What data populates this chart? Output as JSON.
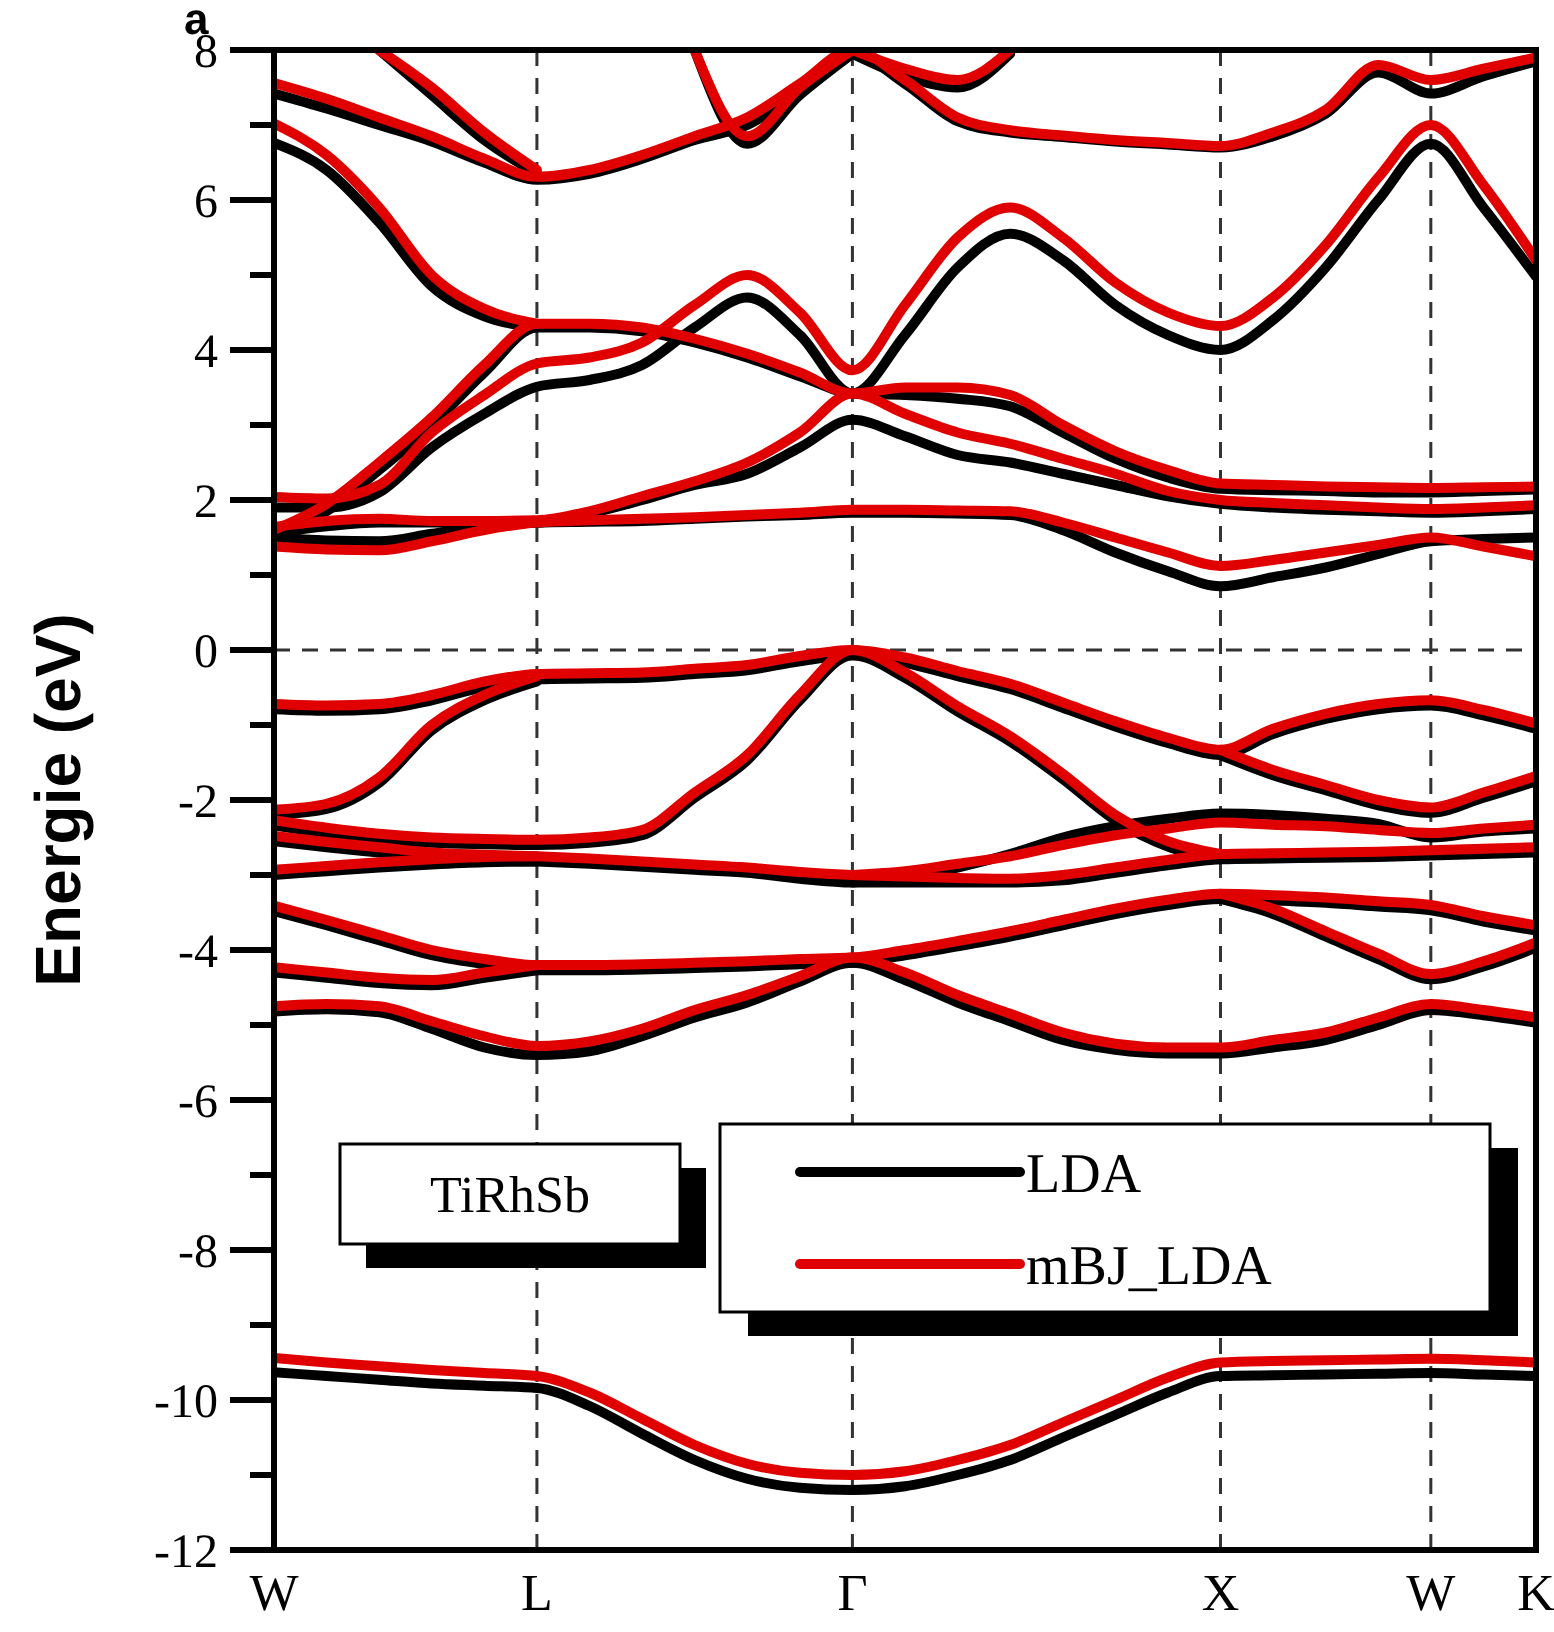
{
  "chart_data": {
    "type": "line",
    "ylabel": "Energie (eV)",
    "annotations": [
      "a",
      "TiRhSb"
    ],
    "categories": [
      "W",
      null,
      null,
      null,
      null,
      "L",
      null,
      null,
      null,
      null,
      null,
      "Γ",
      null,
      null,
      null,
      null,
      null,
      null,
      "X",
      null,
      null,
      null,
      "W",
      null,
      "K"
    ],
    "ylim": [
      -12,
      8
    ],
    "yticks": [
      -12,
      {
        "value": -11,
        "label": null
      },
      -10,
      {
        "value": -9,
        "label": null
      },
      -8,
      {
        "value": -7,
        "label": null
      },
      -6,
      {
        "value": -5,
        "label": null
      },
      -4,
      {
        "value": -3,
        "label": null
      },
      -2,
      {
        "value": -1,
        "label": null
      },
      0,
      {
        "value": 1,
        "label": null
      },
      2,
      {
        "value": 3,
        "label": null
      },
      4,
      {
        "value": 5,
        "label": null
      },
      6,
      {
        "value": 7,
        "label": null
      },
      8
    ],
    "grid": "x",
    "legend": "bottom",
    "line_style": "solid",
    "marker": "none",
    "ref_lines": [
      {
        "axis": "y",
        "value": 0,
        "line_style": "dashed",
        "color": "#333333"
      }
    ],
    "series": [
      {
        "name": "LDA",
        "color": "#000000",
        "values": [
          -9.63,
          -9.68,
          -9.73,
          -9.78,
          -9.81,
          -9.84,
          -10.08,
          -10.45,
          -10.8,
          -11.05,
          -11.17,
          -11.2,
          -11.15,
          -11.0,
          -10.8,
          -10.5,
          -10.2,
          -9.9,
          -9.68,
          -9.67,
          -9.66,
          -9.65,
          -9.64,
          -9.66,
          -9.68
        ]
      },
      {
        "color": "#000000",
        "values": [
          -0.79,
          -0.81,
          -0.79,
          -0.67,
          -0.49,
          -0.39,
          -0.38,
          -0.37,
          -0.32,
          -0.27,
          -0.15,
          -0.07,
          -0.17,
          -0.35,
          -0.52,
          -0.77,
          -1.02,
          -1.24,
          -1.4,
          -1.12,
          -0.92,
          -0.79,
          -0.74,
          -0.87,
          -1.05
        ]
      },
      {
        "color": "#000000",
        "values": [
          -2.2,
          -2.12,
          -1.77,
          -1.07,
          -0.67,
          -0.42,
          null,
          null,
          null,
          null,
          null,
          null,
          null,
          null,
          null,
          null,
          null,
          null,
          null,
          null,
          null,
          null,
          null,
          null,
          null
        ]
      },
      {
        "color": "#000000",
        "values": [
          null,
          null,
          null,
          null,
          null,
          null,
          null,
          null,
          null,
          null,
          null,
          null,
          null,
          null,
          null,
          null,
          null,
          null,
          -1.4,
          -1.67,
          -1.87,
          -2.07,
          -2.17,
          -1.97,
          -1.75
        ]
      },
      {
        "color": "#000000",
        "values": [
          -2.34,
          -2.44,
          -2.52,
          -2.57,
          -2.59,
          -2.6,
          -2.57,
          -2.47,
          -1.97,
          -1.47,
          -0.67,
          -0.07,
          -0.37,
          -0.82,
          -1.22,
          -1.72,
          -2.27,
          -2.62,
          -2.79,
          null,
          null,
          null,
          null,
          null,
          null
        ]
      },
      {
        "color": "#000000",
        "values": [
          -2.55,
          -2.63,
          -2.7,
          -2.77,
          -2.8,
          -2.82,
          -2.85,
          -2.89,
          -2.93,
          -2.97,
          -3.05,
          -3.1,
          -3.1,
          -3.1,
          -3.1,
          -3.07,
          -2.97,
          -2.87,
          -2.79,
          -2.78,
          -2.77,
          -2.76,
          -2.74,
          -2.72,
          -2.7
        ]
      },
      {
        "color": "#000000",
        "values": [
          -3.0,
          -2.95,
          -2.9,
          -2.86,
          -2.83,
          -2.82,
          null,
          null,
          null,
          null,
          null,
          null,
          null,
          null,
          null,
          null,
          null,
          null,
          null,
          null,
          null,
          null,
          null,
          null,
          null
        ]
      },
      {
        "color": "#000000",
        "values": [
          null,
          null,
          null,
          null,
          null,
          null,
          null,
          null,
          null,
          null,
          null,
          -3.1,
          -3.03,
          -2.9,
          -2.72,
          -2.5,
          -2.35,
          -2.25,
          -2.18,
          -2.2,
          -2.25,
          -2.32,
          -2.5,
          -2.42,
          -2.38
        ]
      },
      {
        "color": "#000000",
        "values": [
          -3.48,
          -3.67,
          -3.87,
          -4.07,
          -4.19,
          -4.27,
          -4.27,
          -4.26,
          -4.24,
          -4.22,
          -4.19,
          -4.17,
          -4.07,
          -3.95,
          -3.82,
          -3.67,
          -3.52,
          -3.4,
          -3.32,
          -3.34,
          -3.37,
          -3.42,
          -3.47,
          -3.62,
          -3.74
        ]
      },
      {
        "color": "#000000",
        "values": [
          -4.3,
          -4.37,
          -4.44,
          -4.47,
          -4.37,
          -4.27,
          null,
          null,
          null,
          null,
          null,
          null,
          null,
          null,
          null,
          null,
          null,
          null,
          null,
          null,
          null,
          null,
          null,
          null,
          null
        ]
      },
      {
        "color": "#000000",
        "values": [
          null,
          null,
          null,
          null,
          null,
          null,
          null,
          null,
          null,
          null,
          null,
          null,
          null,
          null,
          null,
          null,
          null,
          null,
          -3.32,
          -3.52,
          -3.82,
          -4.12,
          -4.39,
          -4.22,
          -3.97
        ]
      },
      {
        "color": "#000000",
        "values": [
          -4.82,
          -4.79,
          -4.83,
          -5.05,
          -5.3,
          -5.4,
          -5.35,
          -5.15,
          -4.9,
          -4.7,
          -4.42,
          -4.17,
          -4.4,
          -4.7,
          -4.95,
          -5.2,
          -5.33,
          -5.38,
          -5.38,
          -5.3,
          -5.2,
          -5.0,
          -4.8,
          -4.87,
          -4.97
        ]
      },
      {
        "color": "#000000",
        "values": [
          1.5,
          1.46,
          1.45,
          1.55,
          1.65,
          1.7,
          1.71,
          1.72,
          1.75,
          1.78,
          1.8,
          1.83,
          1.83,
          1.82,
          1.8,
          1.6,
          1.3,
          1.05,
          0.85,
          0.97,
          1.1,
          1.28,
          1.45,
          1.48,
          1.5
        ]
      },
      {
        "color": "#000000",
        "values": [
          1.56,
          1.65,
          1.7,
          1.7,
          1.7,
          1.7,
          1.82,
          2.0,
          2.2,
          2.35,
          2.7,
          3.07,
          2.85,
          2.6,
          2.5,
          2.35,
          2.2,
          2.05,
          1.95,
          1.9,
          1.87,
          1.85,
          1.83,
          1.85,
          1.88
        ]
      },
      {
        "color": "#000000",
        "values": [
          1.9,
          1.9,
          2.1,
          2.7,
          3.15,
          3.51,
          3.6,
          3.8,
          4.3,
          4.7,
          4.2,
          3.42,
          4.2,
          5.1,
          5.55,
          5.2,
          4.6,
          4.2,
          4.0,
          4.4,
          5.1,
          6.0,
          6.75,
          5.9,
          4.98
        ]
      },
      {
        "color": "#000000",
        "values": [
          1.55,
          1.85,
          2.4,
          3.0,
          3.7,
          4.3,
          4.3,
          4.25,
          4.1,
          3.9,
          3.65,
          3.42,
          3.4,
          3.35,
          3.25,
          2.9,
          2.55,
          2.3,
          2.15,
          2.13,
          2.12,
          2.1,
          2.1,
          2.12,
          2.14
        ]
      },
      {
        "color": "#000000",
        "values": [
          6.76,
          6.4,
          5.7,
          4.85,
          4.45,
          4.3,
          null,
          null,
          null,
          null,
          null,
          null,
          null,
          null,
          null,
          null,
          null,
          null,
          null,
          null,
          null,
          null,
          null,
          null,
          null
        ]
      },
      {
        "color": "#000000",
        "values": [
          7.42,
          7.22,
          7.0,
          6.78,
          6.5,
          6.27,
          6.35,
          6.55,
          6.8,
          7.0,
          7.45,
          7.95,
          7.55,
          7.05,
          6.9,
          6.84,
          6.78,
          6.74,
          6.7,
          6.85,
          7.15,
          7.7,
          7.42,
          7.65,
          7.85
        ]
      },
      {
        "color": "#000000",
        "values": [
          null,
          null,
          null,
          null,
          null,
          null,
          null,
          null,
          8.0,
          6.75,
          7.4,
          7.95,
          null,
          null,
          null,
          null,
          null,
          null,
          null,
          null,
          null,
          null,
          null,
          null,
          null
        ]
      },
      {
        "color": "#000000",
        "values": [
          null,
          null,
          8.0,
          7.4,
          6.8,
          6.35,
          null,
          null,
          null,
          null,
          null,
          null,
          null,
          null,
          null,
          null,
          null,
          null,
          null,
          null,
          null,
          null,
          null,
          null,
          null
        ]
      },
      {
        "color": "#000000",
        "values": [
          null,
          null,
          null,
          null,
          null,
          null,
          null,
          null,
          null,
          null,
          null,
          7.95,
          7.65,
          7.5,
          7.95,
          null,
          null,
          null,
          null,
          null,
          null,
          null,
          null,
          null,
          null
        ]
      },
      {
        "name": "mBJ_LDA",
        "color": "#e00000",
        "values": [
          -9.44,
          -9.5,
          -9.55,
          -9.6,
          -9.64,
          -9.68,
          -9.9,
          -10.25,
          -10.6,
          -10.85,
          -10.97,
          -11.0,
          -10.95,
          -10.8,
          -10.6,
          -10.3,
          -10.0,
          -9.7,
          -9.5,
          -9.48,
          -9.47,
          -9.46,
          -9.45,
          -9.47,
          -9.5
        ]
      },
      {
        "color": "#e00000",
        "values": [
          -0.72,
          -0.74,
          -0.72,
          -0.6,
          -0.42,
          -0.32,
          -0.31,
          -0.3,
          -0.25,
          -0.2,
          -0.08,
          0,
          -0.1,
          -0.28,
          -0.45,
          -0.7,
          -0.95,
          -1.17,
          -1.33,
          -1.05,
          -0.85,
          -0.72,
          -0.67,
          -0.8,
          -0.98
        ]
      },
      {
        "color": "#e00000",
        "values": [
          -2.13,
          -2.05,
          -1.7,
          -1.0,
          -0.6,
          -0.35,
          null,
          null,
          null,
          null,
          null,
          null,
          null,
          null,
          null,
          null,
          null,
          null,
          null,
          null,
          null,
          null,
          null,
          null,
          null
        ]
      },
      {
        "color": "#e00000",
        "values": [
          null,
          null,
          null,
          null,
          null,
          null,
          null,
          null,
          null,
          null,
          null,
          null,
          null,
          null,
          null,
          null,
          null,
          null,
          -1.33,
          -1.6,
          -1.8,
          -2.0,
          -2.1,
          -1.9,
          -1.68
        ]
      },
      {
        "color": "#e00000",
        "values": [
          -2.27,
          -2.37,
          -2.45,
          -2.5,
          -2.52,
          -2.53,
          -2.5,
          -2.4,
          -1.9,
          -1.4,
          -0.6,
          0,
          -0.3,
          -0.75,
          -1.15,
          -1.65,
          -2.2,
          -2.55,
          -2.72,
          null,
          null,
          null,
          null,
          null,
          null
        ]
      },
      {
        "color": "#e00000",
        "values": [
          -2.48,
          -2.56,
          -2.63,
          -2.7,
          -2.73,
          -2.75,
          -2.78,
          -2.82,
          -2.86,
          -2.9,
          -2.96,
          -3.0,
          -3.02,
          -3.04,
          -3.05,
          -3.0,
          -2.9,
          -2.8,
          -2.72,
          -2.71,
          -2.7,
          -2.69,
          -2.67,
          -2.65,
          -2.63
        ]
      },
      {
        "color": "#e00000",
        "values": [
          -2.93,
          -2.88,
          -2.83,
          -2.79,
          -2.76,
          -2.75,
          null,
          null,
          null,
          null,
          null,
          null,
          null,
          null,
          null,
          null,
          null,
          null,
          null,
          null,
          null,
          null,
          null,
          null,
          null
        ]
      },
      {
        "color": "#e00000",
        "values": [
          null,
          null,
          null,
          null,
          null,
          null,
          null,
          null,
          null,
          null,
          null,
          -3.0,
          -2.95,
          -2.85,
          -2.75,
          -2.6,
          -2.47,
          -2.38,
          -2.3,
          -2.33,
          -2.35,
          -2.4,
          -2.44,
          -2.38,
          -2.33
        ]
      },
      {
        "color": "#e00000",
        "values": [
          -3.41,
          -3.6,
          -3.8,
          -4.0,
          -4.12,
          -4.2,
          -4.2,
          -4.19,
          -4.17,
          -4.15,
          -4.12,
          -4.1,
          -4.0,
          -3.88,
          -3.75,
          -3.6,
          -3.45,
          -3.33,
          -3.25,
          -3.27,
          -3.3,
          -3.35,
          -3.4,
          -3.55,
          -3.67
        ]
      },
      {
        "color": "#e00000",
        "values": [
          -4.23,
          -4.3,
          -4.37,
          -4.4,
          -4.3,
          -4.2,
          null,
          null,
          null,
          null,
          null,
          null,
          null,
          null,
          null,
          null,
          null,
          null,
          null,
          null,
          null,
          null,
          null,
          null,
          null
        ]
      },
      {
        "color": "#e00000",
        "values": [
          null,
          null,
          null,
          null,
          null,
          null,
          null,
          null,
          null,
          null,
          null,
          null,
          null,
          null,
          null,
          null,
          null,
          null,
          -3.25,
          -3.45,
          -3.75,
          -4.05,
          -4.32,
          -4.15,
          -3.9
        ]
      },
      {
        "color": "#e00000",
        "values": [
          -4.75,
          -4.72,
          -4.75,
          -4.95,
          -5.15,
          -5.28,
          -5.22,
          -5.05,
          -4.8,
          -4.6,
          -4.35,
          -4.1,
          -4.3,
          -4.6,
          -4.85,
          -5.1,
          -5.25,
          -5.3,
          -5.3,
          -5.2,
          -5.1,
          -4.9,
          -4.72,
          -4.8,
          -4.9
        ]
      },
      {
        "color": "#e00000",
        "values": [
          1.38,
          1.34,
          1.33,
          1.45,
          1.6,
          1.7,
          1.73,
          1.75,
          1.77,
          1.8,
          1.83,
          1.87,
          1.87,
          1.86,
          1.85,
          1.7,
          1.5,
          1.3,
          1.12,
          1.2,
          1.3,
          1.4,
          1.5,
          1.38,
          1.25
        ]
      },
      {
        "color": "#e00000",
        "values": [
          1.64,
          1.72,
          1.75,
          1.72,
          1.72,
          1.73,
          1.85,
          2.05,
          2.25,
          2.5,
          2.9,
          3.42,
          3.15,
          2.9,
          2.75,
          2.55,
          2.35,
          2.12,
          2.0,
          1.96,
          1.93,
          1.9,
          1.88,
          1.9,
          1.93
        ]
      },
      {
        "color": "#e00000",
        "values": [
          2.04,
          2.02,
          2.2,
          2.9,
          3.4,
          3.82,
          3.9,
          4.1,
          4.6,
          5.0,
          4.5,
          3.73,
          4.6,
          5.5,
          5.9,
          5.5,
          4.9,
          4.5,
          4.32,
          4.7,
          5.4,
          6.3,
          7.0,
          6.2,
          5.2
        ]
      },
      {
        "color": "#e00000",
        "values": [
          1.6,
          1.95,
          2.5,
          3.1,
          3.8,
          4.35,
          4.35,
          4.3,
          4.15,
          3.95,
          3.7,
          3.42,
          3.5,
          3.5,
          3.4,
          3.0,
          2.65,
          2.4,
          2.22,
          2.2,
          2.18,
          2.17,
          2.16,
          2.17,
          2.18
        ]
      },
      {
        "color": "#e00000",
        "values": [
          7.02,
          6.6,
          5.9,
          5.0,
          4.55,
          4.35,
          null,
          null,
          null,
          null,
          null,
          null,
          null,
          null,
          null,
          null,
          null,
          null,
          null,
          null,
          null,
          null,
          null,
          null,
          null
        ]
      },
      {
        "color": "#e00000",
        "values": [
          7.56,
          7.35,
          7.1,
          6.85,
          6.55,
          6.31,
          6.4,
          6.6,
          6.85,
          7.1,
          7.55,
          8.0,
          7.6,
          7.1,
          6.93,
          6.86,
          6.8,
          6.76,
          6.72,
          6.9,
          7.2,
          7.8,
          7.6,
          7.75,
          7.9
        ]
      },
      {
        "color": "#e00000",
        "values": [
          null,
          null,
          null,
          null,
          null,
          null,
          null,
          null,
          8.0,
          6.85,
          7.5,
          8.0,
          null,
          null,
          null,
          null,
          null,
          null,
          null,
          null,
          null,
          null,
          null,
          null,
          null
        ]
      },
      {
        "color": "#e00000",
        "values": [
          null,
          null,
          8.0,
          7.5,
          6.9,
          6.4,
          null,
          null,
          null,
          null,
          null,
          null,
          null,
          null,
          null,
          null,
          null,
          null,
          null,
          null,
          null,
          null,
          null,
          null,
          null
        ]
      },
      {
        "color": "#e00000",
        "values": [
          null,
          null,
          null,
          null,
          null,
          null,
          null,
          null,
          null,
          null,
          null,
          8.0,
          7.75,
          7.6,
          8.0,
          null,
          null,
          null,
          null,
          null,
          null,
          null,
          null,
          null,
          null
        ]
      }
    ]
  }
}
